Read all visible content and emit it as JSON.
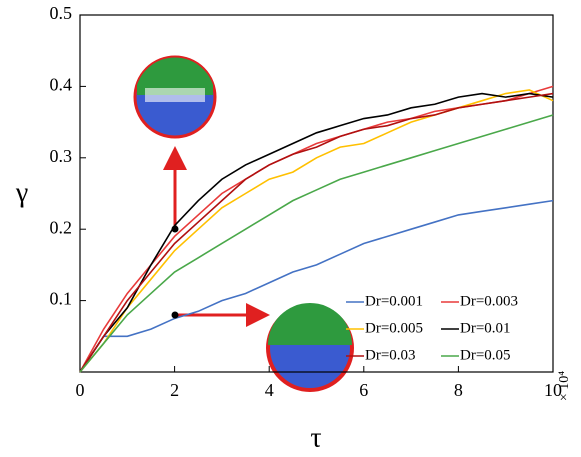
{
  "chart_data": {
    "type": "line",
    "xlabel": "τ",
    "ylabel": "γ",
    "x_multiplier": "× 10⁴",
    "x": [
      0,
      0.5,
      1,
      1.5,
      2,
      2.5,
      3,
      3.5,
      4,
      4.5,
      5,
      5.5,
      6,
      6.5,
      7,
      7.5,
      8,
      8.5,
      9,
      9.5,
      10
    ],
    "xlim": [
      0,
      10
    ],
    "xticks": [
      0,
      2,
      4,
      6,
      8,
      10
    ],
    "ylim": [
      0,
      0.5
    ],
    "yticks": [
      0.1,
      0.2,
      0.3,
      0.4,
      0.5
    ],
    "series": [
      {
        "name": "Dr=0.001",
        "color": "#4472c4",
        "values": [
          0,
          0.05,
          0.05,
          0.06,
          0.075,
          0.085,
          0.1,
          0.11,
          0.125,
          0.14,
          0.15,
          0.165,
          0.18,
          0.19,
          0.2,
          0.21,
          0.22,
          0.225,
          0.23,
          0.235,
          0.24
        ]
      },
      {
        "name": "Dr=0.003",
        "color": "#e83a3a",
        "values": [
          0,
          0.06,
          0.11,
          0.15,
          0.19,
          0.22,
          0.25,
          0.27,
          0.29,
          0.305,
          0.32,
          0.33,
          0.34,
          0.35,
          0.355,
          0.365,
          0.37,
          0.375,
          0.38,
          0.39,
          0.4
        ]
      },
      {
        "name": "Dr=0.005",
        "color": "#ffc000",
        "values": [
          0,
          0.04,
          0.09,
          0.13,
          0.17,
          0.2,
          0.23,
          0.25,
          0.27,
          0.28,
          0.3,
          0.315,
          0.32,
          0.335,
          0.35,
          0.36,
          0.37,
          0.38,
          0.39,
          0.395,
          0.38
        ]
      },
      {
        "name": "Dr=0.01",
        "color": "#000000",
        "values": [
          0,
          0.05,
          0.09,
          0.15,
          0.205,
          0.24,
          0.27,
          0.29,
          0.305,
          0.32,
          0.335,
          0.345,
          0.355,
          0.36,
          0.37,
          0.375,
          0.385,
          0.39,
          0.385,
          0.39,
          0.385
        ]
      },
      {
        "name": "Dr=0.03",
        "color": "#b01010",
        "values": [
          0,
          0.05,
          0.1,
          0.14,
          0.18,
          0.21,
          0.24,
          0.27,
          0.29,
          0.305,
          0.315,
          0.33,
          0.34,
          0.345,
          0.355,
          0.36,
          0.37,
          0.375,
          0.38,
          0.385,
          0.39
        ]
      },
      {
        "name": "Dr=0.05",
        "color": "#4aa84a",
        "values": [
          0,
          0.04,
          0.08,
          0.11,
          0.14,
          0.16,
          0.18,
          0.2,
          0.22,
          0.24,
          0.255,
          0.27,
          0.28,
          0.29,
          0.3,
          0.31,
          0.32,
          0.33,
          0.34,
          0.35,
          0.36
        ]
      }
    ]
  }
}
